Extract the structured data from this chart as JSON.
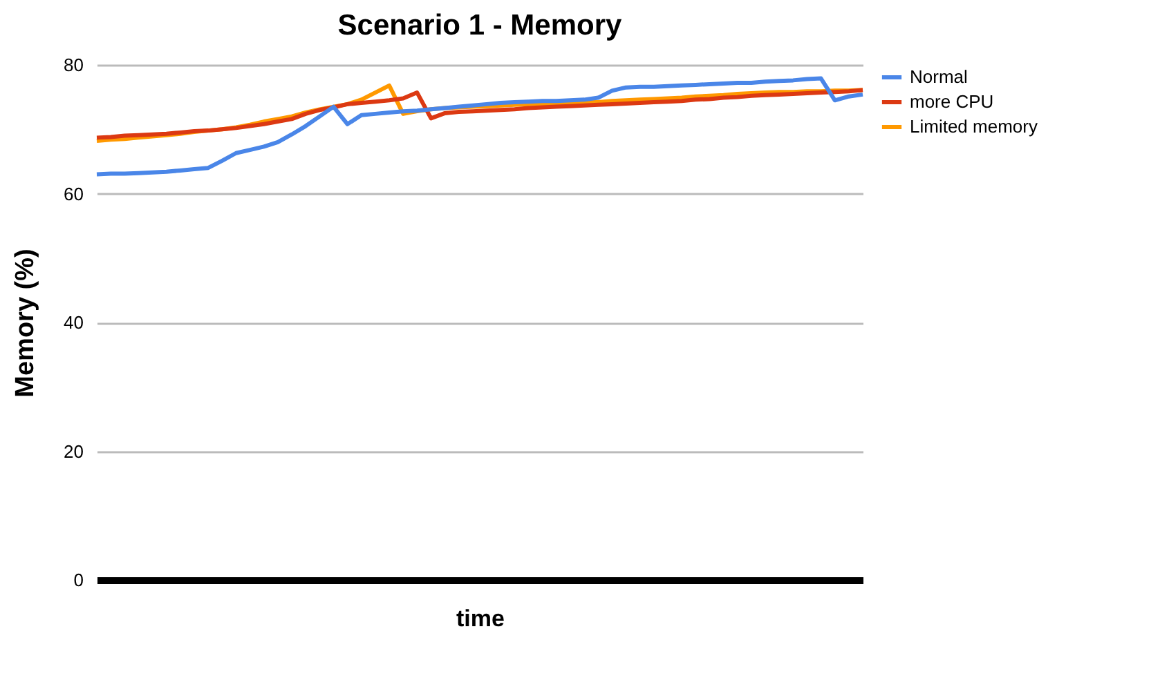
{
  "chart_data": {
    "type": "line",
    "title": "Scenario 1 - Memory",
    "xlabel": "time",
    "ylabel": "Memory (%)",
    "categories": [
      null,
      null,
      null,
      null,
      null,
      null,
      null,
      null,
      null,
      null,
      null,
      null,
      null,
      null,
      null,
      null,
      null,
      null,
      null,
      null,
      null,
      null,
      null,
      null,
      null,
      null,
      null,
      null,
      null,
      null,
      null,
      null,
      null,
      null,
      null,
      null,
      null,
      null,
      null,
      null,
      null,
      null,
      null,
      null,
      null,
      null,
      null,
      null,
      null,
      null,
      null,
      null,
      null,
      null,
      null,
      null
    ],
    "series": [
      {
        "name": "Normal",
        "color": "#4a86e8",
        "values": [
          63.0,
          63.1,
          63.1,
          63.2,
          63.3,
          63.4,
          63.6,
          63.8,
          64.0,
          65.1,
          66.3,
          66.8,
          67.3,
          68.0,
          69.2,
          70.5,
          72.0,
          73.5,
          70.8,
          72.2,
          72.4,
          72.6,
          72.8,
          72.9,
          73.1,
          73.3,
          73.5,
          73.7,
          73.9,
          74.1,
          74.2,
          74.3,
          74.4,
          74.4,
          74.5,
          74.6,
          74.9,
          76.0,
          76.5,
          76.6,
          76.6,
          76.7,
          76.8,
          76.9,
          77.0,
          77.1,
          77.2,
          77.2,
          77.4,
          77.5,
          77.6,
          77.8,
          77.9,
          74.5,
          75.1,
          75.4
        ]
      },
      {
        "name": "more CPU",
        "color": "#dc3912",
        "values": [
          68.7,
          68.8,
          69.0,
          69.1,
          69.2,
          69.3,
          69.5,
          69.7,
          69.8,
          70.0,
          70.2,
          70.5,
          70.8,
          71.2,
          71.6,
          72.4,
          73.0,
          73.4,
          73.9,
          74.1,
          74.3,
          74.5,
          74.8,
          75.7,
          71.7,
          72.5,
          72.7,
          72.8,
          72.9,
          73.0,
          73.1,
          73.3,
          73.4,
          73.5,
          73.6,
          73.7,
          73.8,
          73.9,
          74.0,
          74.1,
          74.2,
          74.3,
          74.4,
          74.6,
          74.7,
          74.9,
          75.0,
          75.2,
          75.3,
          75.4,
          75.5,
          75.6,
          75.7,
          75.8,
          75.9,
          76.1
        ]
      },
      {
        "name": "Limited memory",
        "color": "#ff9900",
        "values": [
          68.2,
          68.4,
          68.5,
          68.7,
          68.9,
          69.1,
          69.3,
          69.6,
          69.8,
          70.0,
          70.3,
          70.7,
          71.2,
          71.6,
          72.0,
          72.6,
          73.1,
          73.5,
          73.9,
          74.6,
          75.7,
          76.8,
          72.4,
          72.8,
          73.1,
          73.3,
          73.4,
          73.5,
          73.6,
          73.7,
          73.8,
          73.9,
          74.0,
          74.0,
          74.1,
          74.2,
          74.2,
          74.4,
          74.5,
          74.6,
          74.7,
          74.8,
          74.9,
          75.1,
          75.2,
          75.3,
          75.5,
          75.6,
          75.7,
          75.8,
          75.8,
          75.9,
          75.9,
          76.0,
          76.0,
          76.1
        ]
      }
    ],
    "ylim": [
      0,
      80
    ],
    "yticks": [
      0,
      20,
      40,
      60,
      80
    ],
    "grid": "y",
    "legend": "right",
    "tick_labels": "y",
    "marker": "none",
    "line_style": "solid"
  }
}
